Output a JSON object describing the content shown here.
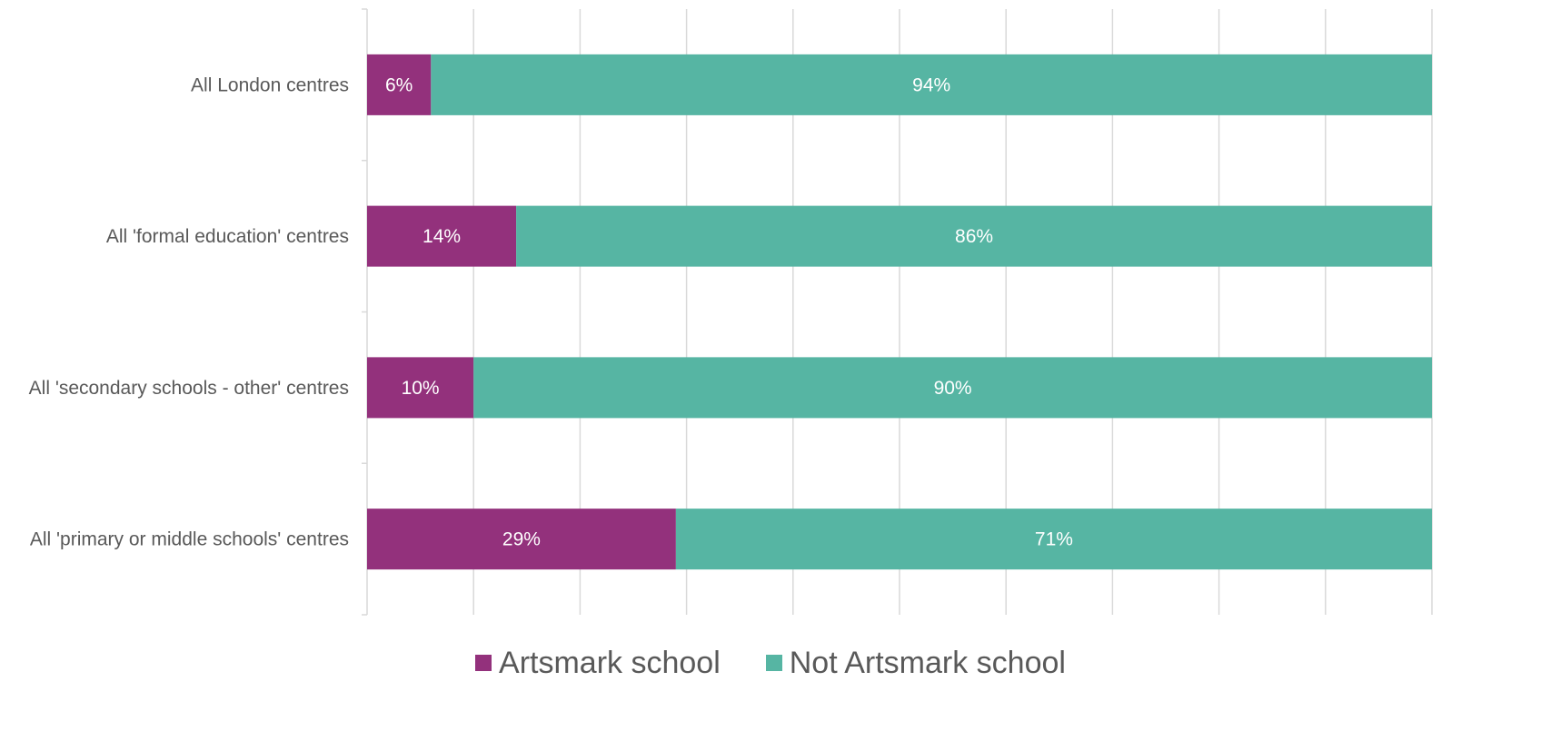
{
  "chart_data": {
    "type": "bar",
    "orientation": "horizontal",
    "stacked": true,
    "percent": true,
    "categories": [
      "All London centres",
      "All 'formal education' centres",
      "All 'secondary schools - other' centres",
      "All 'primary or middle schools' centres"
    ],
    "series": [
      {
        "name": "Artsmark school",
        "color": "#93317c",
        "values": [
          6,
          14,
          10,
          29
        ],
        "labels": [
          "6%",
          "14%",
          "10%",
          "29%"
        ]
      },
      {
        "name": "Not Artsmark school",
        "color": "#56b5a3",
        "values": [
          94,
          86,
          90,
          71
        ],
        "labels": [
          "94%",
          "86%",
          "90%",
          "71%"
        ]
      }
    ],
    "xlim": [
      0,
      100
    ],
    "grid": true,
    "gridlines_count": 10,
    "legend_position": "bottom"
  },
  "legend": {
    "artsmark_label": "Artsmark school",
    "not_artsmark_label": "Not Artsmark school",
    "artsmark_color": "#93317c",
    "not_artsmark_color": "#56b5a3"
  }
}
